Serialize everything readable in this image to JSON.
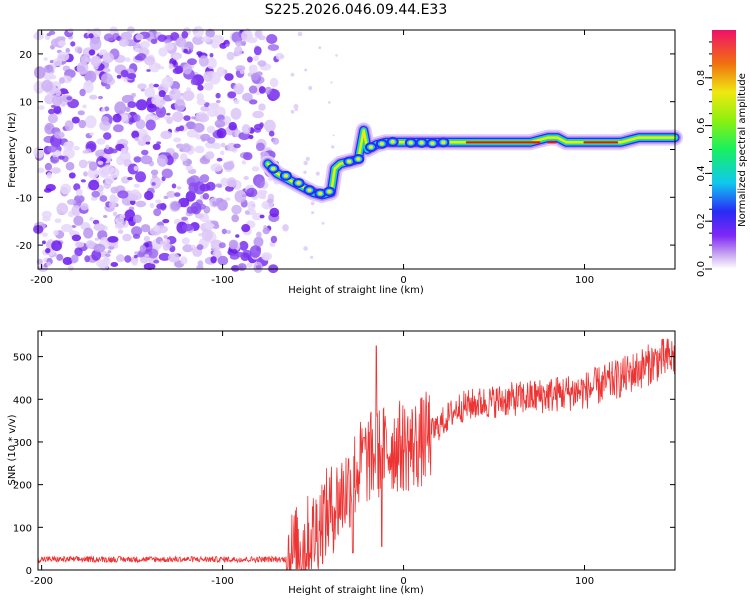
{
  "title": "S225.2026.046.09.44.E33",
  "chart_data": [
    {
      "type": "heatmap",
      "title": "S225.2026.046.09.44.E33",
      "xlabel": "Height of straight line (km)",
      "ylabel": "Frequency (Hz)",
      "xlim": [
        -202,
        150
      ],
      "ylim": [
        -25,
        25
      ],
      "xticks": [
        "-200",
        "-100",
        "0",
        "100"
      ],
      "xtick_values": [
        -200,
        -100,
        0,
        100
      ],
      "yticks": [
        "20",
        "10",
        "0",
        "-10",
        "-20"
      ],
      "ytick_values": [
        20,
        10,
        0,
        -10,
        -20
      ],
      "colorbar": {
        "label": "Normalized spectral amplitude",
        "ticks": [
          "0.0",
          "0.2",
          "0.4",
          "0.6",
          "0.8"
        ],
        "tick_values": [
          0.0,
          0.2,
          0.4,
          0.6,
          0.8
        ],
        "range": [
          0,
          1
        ]
      },
      "noise_region_x": [
        -202,
        -70
      ],
      "ridge": [
        [
          -75,
          -3
        ],
        [
          -70,
          -5
        ],
        [
          -65,
          -6
        ],
        [
          -60,
          -7
        ],
        [
          -55,
          -8
        ],
        [
          -50,
          -9
        ],
        [
          -45,
          -9.5
        ],
        [
          -40,
          -9
        ],
        [
          -38,
          -4
        ],
        [
          -35,
          -3
        ],
        [
          -30,
          -2.5
        ],
        [
          -25,
          -2
        ],
        [
          -22,
          4
        ],
        [
          -20,
          0
        ],
        [
          -15,
          1
        ],
        [
          -10,
          1.5
        ],
        [
          0,
          1.5
        ],
        [
          10,
          1.5
        ],
        [
          20,
          1.5
        ],
        [
          30,
          1.5
        ],
        [
          40,
          1.5
        ],
        [
          50,
          1.5
        ],
        [
          60,
          1.5
        ],
        [
          70,
          1.5
        ],
        [
          80,
          2.5
        ],
        [
          85,
          2.5
        ],
        [
          90,
          1.5
        ],
        [
          100,
          1.5
        ],
        [
          110,
          1.5
        ],
        [
          120,
          1.5
        ],
        [
          130,
          2.5
        ],
        [
          140,
          2.5
        ],
        [
          150,
          2.5
        ]
      ]
    },
    {
      "type": "line",
      "xlabel": "Height of straight line (km)",
      "ylabel": "SNR (10 * v/v)",
      "xlim": [
        -202,
        150
      ],
      "ylim": [
        0,
        560
      ],
      "xticks": [
        "-200",
        "-100",
        "0",
        "100"
      ],
      "xtick_values": [
        -200,
        -100,
        0,
        100
      ],
      "yticks": [
        "0",
        "100",
        "200",
        "300",
        "400",
        "500"
      ],
      "ytick_values": [
        0,
        100,
        200,
        300,
        400,
        500
      ],
      "color": "#ee3333",
      "trend": [
        [
          -202,
          20
        ],
        [
          -150,
          20
        ],
        [
          -100,
          20
        ],
        [
          -70,
          22
        ],
        [
          -60,
          40
        ],
        [
          -50,
          80
        ],
        [
          -45,
          120
        ],
        [
          -40,
          140
        ],
        [
          -35,
          170
        ],
        [
          -30,
          200
        ],
        [
          -25,
          240
        ],
        [
          -20,
          260
        ],
        [
          -15,
          270
        ],
        [
          -10,
          280
        ],
        [
          -5,
          290
        ],
        [
          0,
          290
        ],
        [
          5,
          290
        ],
        [
          10,
          300
        ],
        [
          20,
          340
        ],
        [
          30,
          380
        ],
        [
          40,
          390
        ],
        [
          60,
          400
        ],
        [
          80,
          410
        ],
        [
          100,
          420
        ],
        [
          120,
          450
        ],
        [
          140,
          490
        ],
        [
          150,
          500
        ]
      ],
      "spikes": [
        [
          -15,
          525
        ],
        [
          -12,
          55
        ],
        [
          -22,
          310
        ],
        [
          -28,
          40
        ]
      ]
    }
  ]
}
